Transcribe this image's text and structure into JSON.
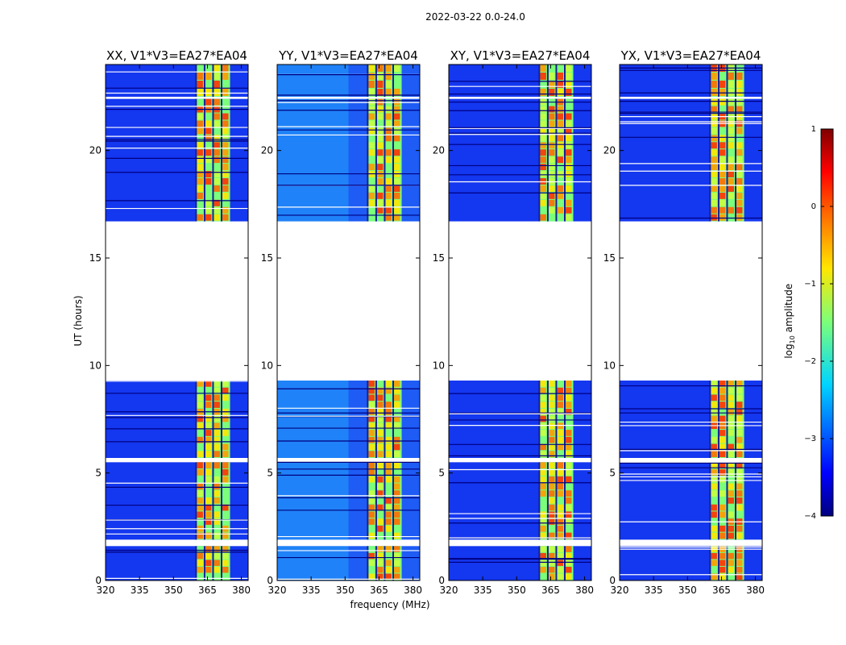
{
  "chart_data": {
    "type": "heatmap",
    "suptitle": "2022-03-22 0.0-24.0",
    "xlabel": "frequency (MHz)",
    "ylabel": "UT (hours)",
    "xlim": [
      320,
      383
    ],
    "ylim": [
      0,
      24
    ],
    "xticks": [
      "320",
      "335",
      "350",
      "365",
      "380"
    ],
    "xtick_values": [
      320,
      335,
      350,
      365,
      380
    ],
    "yticks": [
      "0",
      "5",
      "10",
      "15",
      "20"
    ],
    "ytick_values": [
      0,
      5,
      10,
      15,
      20
    ],
    "panels": [
      {
        "title": "XX, V1*V3=EA27*EA04",
        "band_start": 360,
        "band_end": 375
      },
      {
        "title": "YY, V1*V3=EA27*EA04",
        "band_start": 360,
        "band_end": 375
      },
      {
        "title": "XY, V1*V3=EA27*EA04",
        "band_start": 360,
        "band_end": 375
      },
      {
        "title": "YX, V1*V3=EA27*EA04",
        "band_start": 360,
        "band_end": 375
      }
    ],
    "data_segments_ut": [
      [
        0,
        1.6
      ],
      [
        1.9,
        5.5
      ],
      [
        5.7,
        9.3
      ],
      [
        16.7,
        22.4
      ],
      [
        22.5,
        24
      ]
    ],
    "gap_ut": [
      [
        9.3,
        16.7
      ]
    ],
    "colorbar": {
      "label_main": "log",
      "label_sub": "10",
      "label_rest": " amplitude",
      "ticks": [
        "−4",
        "−3",
        "−2",
        "−1",
        "0",
        "1"
      ],
      "tick_values": [
        -4,
        -3,
        -2,
        -1,
        0,
        1
      ],
      "range": [
        -4,
        1
      ]
    }
  }
}
